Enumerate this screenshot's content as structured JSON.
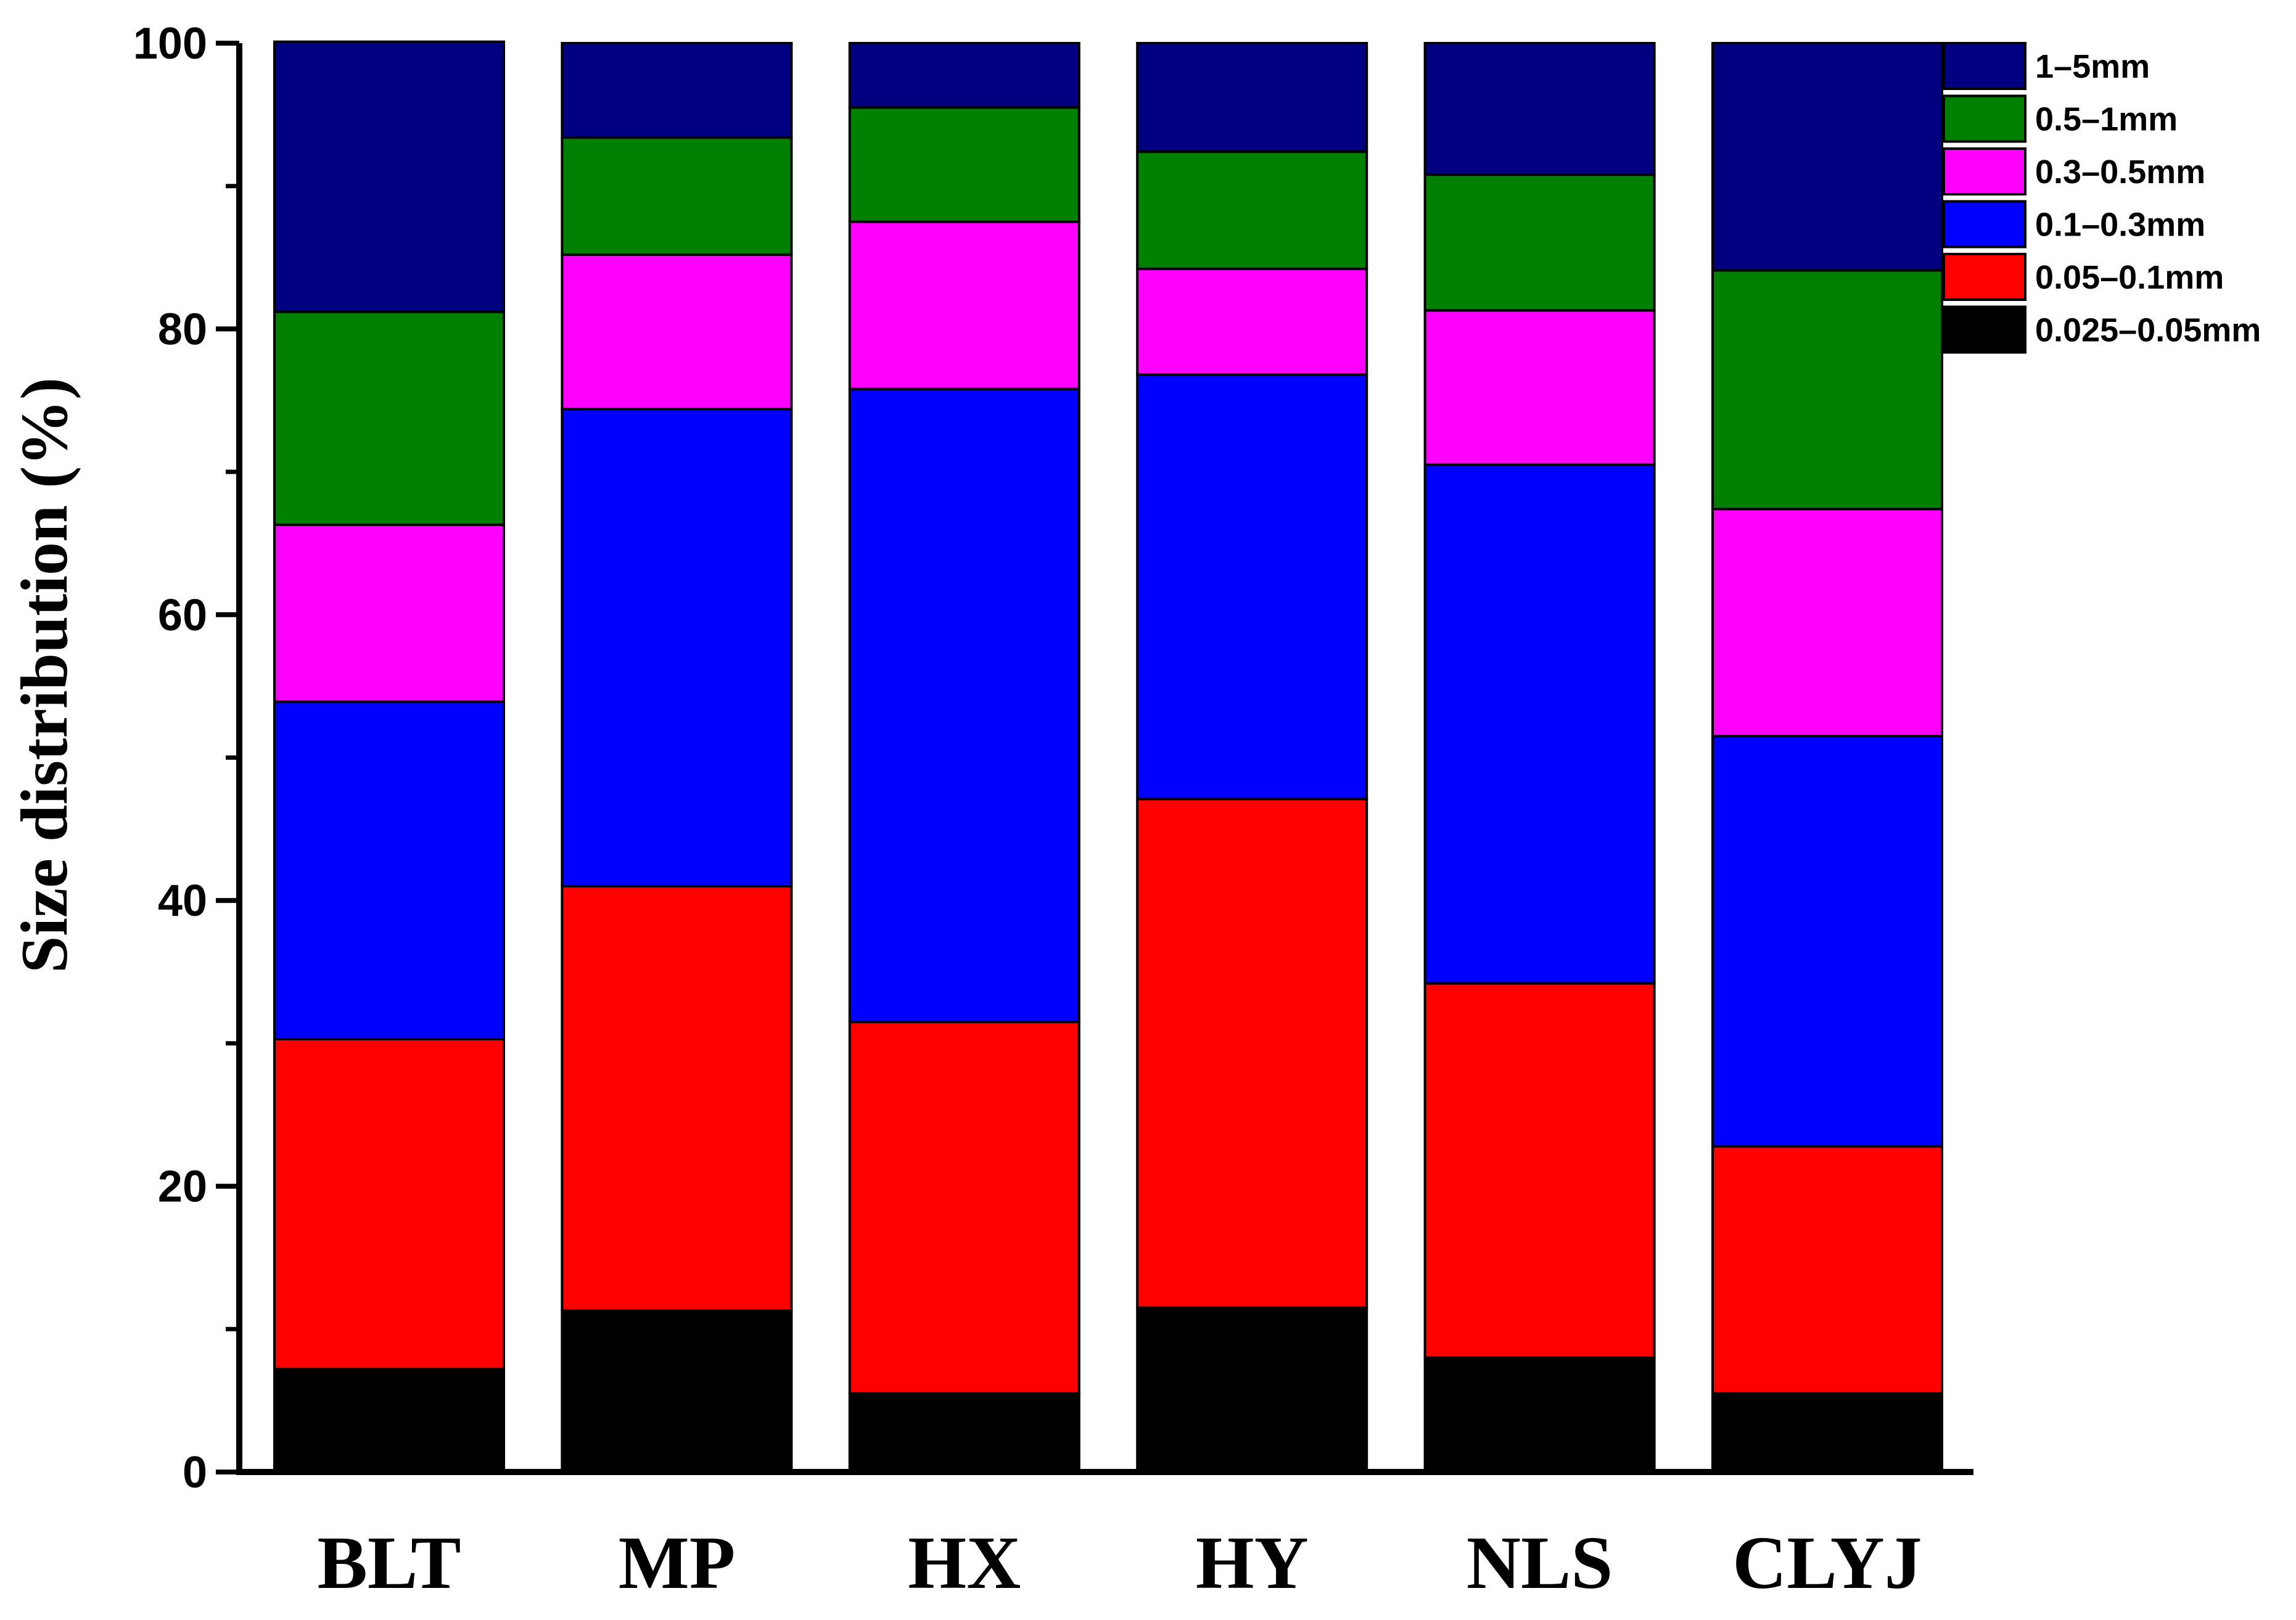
{
  "chart_data": {
    "type": "bar",
    "stacked": true,
    "title": "",
    "xlabel": "",
    "ylabel": "Size distribution (%)",
    "ylim": [
      0,
      100
    ],
    "yticks": [
      "0",
      "20",
      "40",
      "60",
      "80",
      "100"
    ],
    "categories": [
      "BLT",
      "MP",
      "HX",
      "HY",
      "NLS",
      "CLYJ"
    ],
    "legend_position": "top-right",
    "series": [
      {
        "name": "0.025–0.05mm",
        "color": "#000000",
        "values": [
          7.2,
          11.3,
          5.5,
          11.5,
          8.0,
          5.5
        ]
      },
      {
        "name": "0.05–0.1mm",
        "color": "#ff0000",
        "values": [
          23.1,
          29.7,
          26.0,
          35.6,
          26.2,
          17.3
        ]
      },
      {
        "name": "0.1–0.3mm",
        "color": "#0000ff",
        "values": [
          23.6,
          33.4,
          44.3,
          29.7,
          36.3,
          28.7
        ]
      },
      {
        "name": "0.3–0.5mm",
        "color": "#ff00ff",
        "values": [
          12.4,
          10.8,
          11.7,
          7.4,
          10.8,
          15.9
        ]
      },
      {
        "name": "0.5–1mm",
        "color": "#008000",
        "values": [
          14.9,
          8.2,
          8.0,
          8.2,
          9.5,
          16.7
        ]
      },
      {
        "name": "1–5mm",
        "color": "#000080",
        "values": [
          18.9,
          6.6,
          4.5,
          7.6,
          9.2,
          15.9
        ]
      }
    ]
  }
}
